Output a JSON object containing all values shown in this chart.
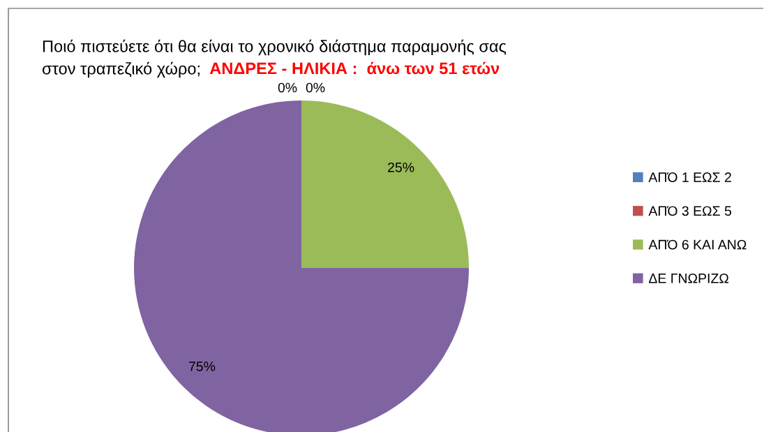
{
  "chart_data": {
    "type": "pie",
    "title": "Ποιό πιστεύετε ότι θα είναι το χρονικό διάστημα παραμονής σας\nστον τραπεζικό χώρο;",
    "subtitle": "ΑΝΔΡΕΣ - ΗΛΙΚΙΑ :  άνω των 51 ετών",
    "categories": [
      "ΑΠΌ 1 ΕΩΣ 2",
      "ΑΠΌ 3 ΕΩΣ 5",
      "ΑΠΌ 6 ΚΑΙ ΑΝΩ",
      "ΔΕ ΓΝΩΡΙΖΩ"
    ],
    "values": [
      0,
      0,
      25,
      75
    ],
    "colors": [
      "#4f81bd",
      "#c0504d",
      "#9bbb59",
      "#8064a2"
    ],
    "value_labels": [
      "0%",
      "0%",
      "25%",
      "75%"
    ],
    "legend": "right"
  }
}
